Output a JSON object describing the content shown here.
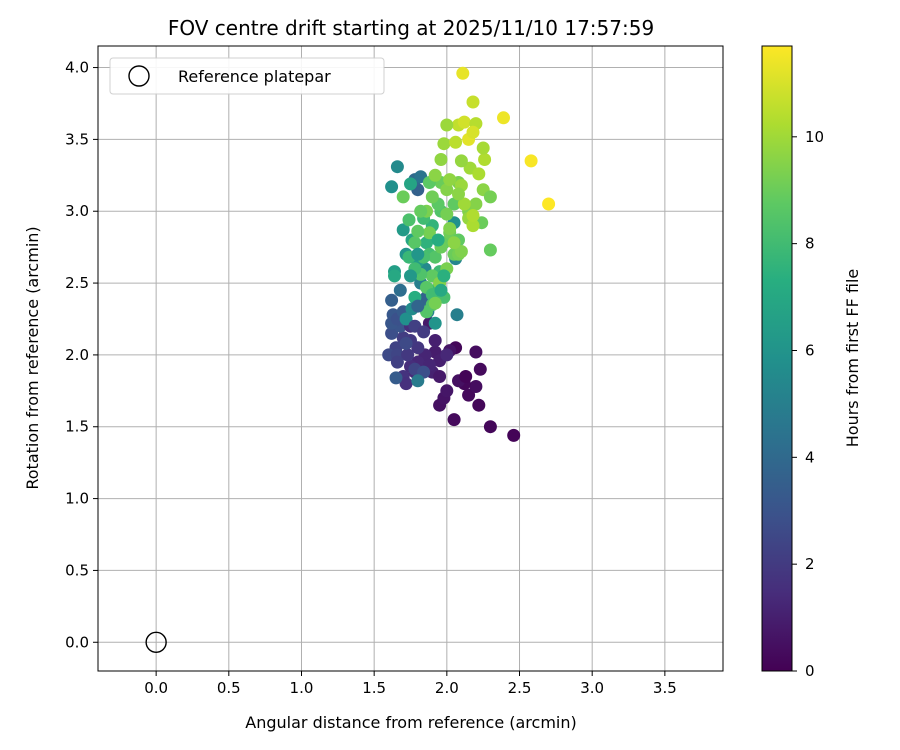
{
  "chart_data": {
    "type": "scatter",
    "title": "FOV centre drift starting at 2025/11/10 17:57:59",
    "xlabel": "Angular distance from reference (arcmin)",
    "ylabel": "Rotation from reference (arcmin)",
    "xlim": [
      -0.4,
      3.9
    ],
    "ylim": [
      -0.2,
      4.15
    ],
    "xticks": [
      0.0,
      0.5,
      1.0,
      1.5,
      2.0,
      2.5,
      3.0,
      3.5
    ],
    "xtick_labels": [
      "0.0",
      "0.5",
      "1.0",
      "1.5",
      "2.0",
      "2.5",
      "3.0",
      "3.5"
    ],
    "yticks": [
      0.0,
      0.5,
      1.0,
      1.5,
      2.0,
      2.5,
      3.0,
      3.5,
      4.0
    ],
    "ytick_labels": [
      "0.0",
      "0.5",
      "1.0",
      "1.5",
      "2.0",
      "2.5",
      "3.0",
      "3.5",
      "4.0"
    ],
    "grid": true,
    "colormap": "viridis",
    "colorbar": {
      "label": "Hours from first FF file",
      "range": [
        0,
        11.7
      ],
      "ticks": [
        0,
        2,
        4,
        6,
        8,
        10
      ],
      "tick_labels": [
        "0",
        "2",
        "4",
        "6",
        "8",
        "10"
      ]
    },
    "legend": {
      "position": "top-left",
      "entries": [
        {
          "label": "Reference platepar",
          "marker": "open-circle"
        }
      ]
    },
    "reference_point": {
      "x": 0.0,
      "y": 0.0,
      "marker": "open-circle"
    },
    "points": [
      [
        2.46,
        1.44,
        0.1
      ],
      [
        2.3,
        1.5,
        0.2
      ],
      [
        2.05,
        1.55,
        0.3
      ],
      [
        2.22,
        1.65,
        0.2
      ],
      [
        1.95,
        1.65,
        0.5
      ],
      [
        1.98,
        1.7,
        0.6
      ],
      [
        2.15,
        1.72,
        0.3
      ],
      [
        2.2,
        1.78,
        0.4
      ],
      [
        2.12,
        1.8,
        0.2
      ],
      [
        2.08,
        1.82,
        0.5
      ],
      [
        2.0,
        1.75,
        0.7
      ],
      [
        2.13,
        1.85,
        0.1
      ],
      [
        2.23,
        1.9,
        0.3
      ],
      [
        2.06,
        2.05,
        0.2
      ],
      [
        2.2,
        2.02,
        0.4
      ],
      [
        2.02,
        2.03,
        0.6
      ],
      [
        1.92,
        2.02,
        0.9
      ],
      [
        1.95,
        1.96,
        1.0
      ],
      [
        1.9,
        1.88,
        1.1
      ],
      [
        1.95,
        1.85,
        0.8
      ],
      [
        1.85,
        2.0,
        1.2
      ],
      [
        1.8,
        1.95,
        1.3
      ],
      [
        1.75,
        1.92,
        1.5
      ],
      [
        1.7,
        1.85,
        1.7
      ],
      [
        1.72,
        1.8,
        1.6
      ],
      [
        1.78,
        1.88,
        1.4
      ],
      [
        1.88,
        1.93,
        1.2
      ],
      [
        1.8,
        2.05,
        1.8
      ],
      [
        1.75,
        2.1,
        1.9
      ],
      [
        1.7,
        2.12,
        2.1
      ],
      [
        1.65,
        2.05,
        2.3
      ],
      [
        1.6,
        2.0,
        2.6
      ],
      [
        1.66,
        2.0,
        2.4
      ],
      [
        1.62,
        2.15,
        2.8
      ],
      [
        1.68,
        2.2,
        3.0
      ],
      [
        1.63,
        2.28,
        3.2
      ],
      [
        1.62,
        2.22,
        3.1
      ],
      [
        1.66,
        2.25,
        2.9
      ],
      [
        1.7,
        2.3,
        3.3
      ],
      [
        1.62,
        2.38,
        3.5
      ],
      [
        1.75,
        2.2,
        1.5
      ],
      [
        1.73,
        2.0,
        1.9
      ],
      [
        1.78,
        1.9,
        2.4
      ],
      [
        1.84,
        1.88,
        2.8
      ],
      [
        1.65,
        1.84,
        3.4
      ],
      [
        1.8,
        1.82,
        4.8
      ],
      [
        1.92,
        2.1,
        1.0
      ],
      [
        1.88,
        2.22,
        0.8
      ],
      [
        2.0,
        2.0,
        1.3
      ],
      [
        1.82,
        2.35,
        4.1
      ],
      [
        1.86,
        2.4,
        3.7
      ],
      [
        1.8,
        3.15,
        3.6
      ],
      [
        1.78,
        3.22,
        4.0
      ],
      [
        1.82,
        3.24,
        4.5
      ],
      [
        1.66,
        3.31,
        5.5
      ],
      [
        1.62,
        3.17,
        5.8
      ],
      [
        1.7,
        2.87,
        6.3
      ],
      [
        1.64,
        2.58,
        6.5
      ],
      [
        1.64,
        2.55,
        7.0
      ],
      [
        1.75,
        3.19,
        6.8
      ],
      [
        1.72,
        2.7,
        6.0
      ],
      [
        1.85,
        2.6,
        5.5
      ],
      [
        1.82,
        2.5,
        5.0
      ],
      [
        1.87,
        2.3,
        5.2
      ],
      [
        1.92,
        2.22,
        6.0
      ],
      [
        2.07,
        2.28,
        5.0
      ],
      [
        2.06,
        2.67,
        5.3
      ],
      [
        2.05,
        2.92,
        5.8
      ],
      [
        1.8,
        2.65,
        6.5
      ],
      [
        1.76,
        2.8,
        6.8
      ],
      [
        1.86,
        2.78,
        7.5
      ],
      [
        1.92,
        2.45,
        7.8
      ],
      [
        1.88,
        2.7,
        8.1
      ],
      [
        1.95,
        2.58,
        7.9
      ],
      [
        1.78,
        2.4,
        7.3
      ],
      [
        1.9,
        2.9,
        7.6
      ],
      [
        1.98,
        2.4,
        8.2
      ],
      [
        1.84,
        2.95,
        8.0
      ],
      [
        1.74,
        2.94,
        8.3
      ],
      [
        1.78,
        2.78,
        8.6
      ],
      [
        1.9,
        2.55,
        8.8
      ],
      [
        1.92,
        2.68,
        8.5
      ],
      [
        1.96,
        3.0,
        8.4
      ],
      [
        1.94,
        3.05,
        8.7
      ],
      [
        1.98,
        2.78,
        8.9
      ],
      [
        2.02,
        2.85,
        9.1
      ],
      [
        1.88,
        2.85,
        9.2
      ],
      [
        1.84,
        2.68,
        8.2
      ],
      [
        1.9,
        2.35,
        8.4
      ],
      [
        1.86,
        2.47,
        8.6
      ],
      [
        2.0,
        2.6,
        9.3
      ],
      [
        2.05,
        2.7,
        9.0
      ],
      [
        2.08,
        2.7,
        9.2
      ],
      [
        2.08,
        2.8,
        8.8
      ],
      [
        2.1,
        2.72,
        9.4
      ],
      [
        1.96,
        3.2,
        9.0
      ],
      [
        1.88,
        3.2,
        8.7
      ],
      [
        1.9,
        3.1,
        9.1
      ],
      [
        1.92,
        3.25,
        9.6
      ],
      [
        2.0,
        3.15,
        9.5
      ],
      [
        2.05,
        3.05,
        8.8
      ],
      [
        2.08,
        3.2,
        9.3
      ],
      [
        2.15,
        3.0,
        9.4
      ],
      [
        2.2,
        3.05,
        9.5
      ],
      [
        2.25,
        3.15,
        9.6
      ],
      [
        2.3,
        3.1,
        9.2
      ],
      [
        2.24,
        2.92,
        9.0
      ],
      [
        2.3,
        2.73,
        8.9
      ],
      [
        2.16,
        3.3,
        10.0
      ],
      [
        2.1,
        3.35,
        9.8
      ],
      [
        1.96,
        3.36,
        9.7
      ],
      [
        1.98,
        3.47,
        9.9
      ],
      [
        2.06,
        3.48,
        10.5
      ],
      [
        2.26,
        3.36,
        10.3
      ],
      [
        2.25,
        3.44,
        10.1
      ],
      [
        2.08,
        3.6,
        10.6
      ],
      [
        2.12,
        3.62,
        10.9
      ],
      [
        2.0,
        3.6,
        9.9
      ],
      [
        2.2,
        3.61,
        10.4
      ],
      [
        2.15,
        3.5,
        11.2
      ],
      [
        2.18,
        3.55,
        11.0
      ],
      [
        2.18,
        3.76,
        10.7
      ],
      [
        2.39,
        3.65,
        11.4
      ],
      [
        2.11,
        3.96,
        11.3
      ],
      [
        2.58,
        3.35,
        11.6
      ],
      [
        2.7,
        3.05,
        11.7
      ],
      [
        2.15,
        2.95,
        9.8
      ],
      [
        2.18,
        2.9,
        10.2
      ],
      [
        2.12,
        3.05,
        10.0
      ],
      [
        2.02,
        2.88,
        9.4
      ],
      [
        1.96,
        2.75,
        9.0
      ],
      [
        1.82,
        2.56,
        8.4
      ],
      [
        1.78,
        2.6,
        8.0
      ],
      [
        1.74,
        2.68,
        7.8
      ],
      [
        1.7,
        3.1,
        9.0
      ],
      [
        1.86,
        3.0,
        9.3
      ],
      [
        1.95,
        2.5,
        9.5
      ],
      [
        1.9,
        2.42,
        8.0
      ],
      [
        1.86,
        2.3,
        8.5
      ],
      [
        1.92,
        2.36,
        9.2
      ],
      [
        2.05,
        2.78,
        9.6
      ],
      [
        2.02,
        3.22,
        9.7
      ],
      [
        2.1,
        3.18,
        9.9
      ],
      [
        2.08,
        3.12,
        9.6
      ],
      [
        2.18,
        2.97,
        10.3
      ],
      [
        2.22,
        3.26,
        10.2
      ],
      [
        2.0,
        2.98,
        9.2
      ],
      [
        1.8,
        2.86,
        8.8
      ],
      [
        1.82,
        3.0,
        8.9
      ],
      [
        1.75,
        2.55,
        6.2
      ],
      [
        1.8,
        2.7,
        6.1
      ],
      [
        1.96,
        2.45,
        7.0
      ],
      [
        1.72,
        2.25,
        5.8
      ],
      [
        1.76,
        2.32,
        5.6
      ],
      [
        1.94,
        2.8,
        7.2
      ],
      [
        1.98,
        2.55,
        7.4
      ],
      [
        1.78,
        2.2,
        2.2
      ],
      [
        1.84,
        2.16,
        2.0
      ],
      [
        1.72,
        2.08,
        2.6
      ],
      [
        1.66,
        1.95,
        2.2
      ],
      [
        1.8,
        2.34,
        3.8
      ],
      [
        1.68,
        2.45,
        4.2
      ]
    ]
  }
}
